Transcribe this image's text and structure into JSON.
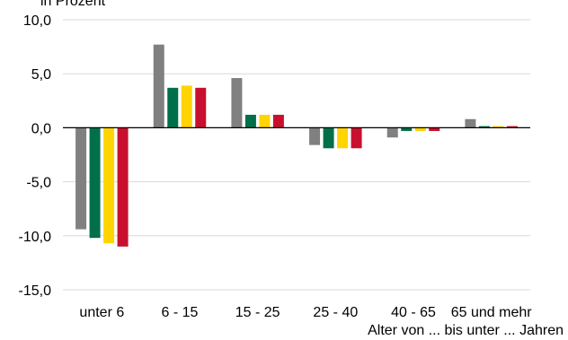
{
  "chart_data": {
    "type": "bar",
    "title": "in Prozent",
    "xlabel": "Alter von ... bis unter ... Jahren",
    "ylabel": "",
    "ylim": [
      -15,
      10
    ],
    "yticks": [
      10,
      5,
      0,
      -5,
      -10,
      -15
    ],
    "ytick_labels": [
      "10,0",
      "5,0",
      "0,0",
      "-5,0",
      "-10,0",
      "-15,0"
    ],
    "categories": [
      "unter 6",
      "6 - 15",
      "15 - 25",
      "25 - 40",
      "40 - 65",
      "65 und mehr"
    ],
    "grid": "horizontal",
    "series": [
      {
        "values": [
          -9.4,
          7.7,
          4.6,
          -1.6,
          -0.9,
          0.8
        ],
        "color": "#808080"
      },
      {
        "values": [
          -10.2,
          3.7,
          1.2,
          -1.9,
          -0.3,
          0.15
        ],
        "color": "#00704A"
      },
      {
        "values": [
          -10.7,
          3.9,
          1.2,
          -1.9,
          -0.3,
          0.15
        ],
        "color": "#FFD400"
      },
      {
        "values": [
          -11.0,
          3.7,
          1.2,
          -1.9,
          -0.3,
          0.15
        ],
        "color": "#C8102E"
      }
    ]
  }
}
